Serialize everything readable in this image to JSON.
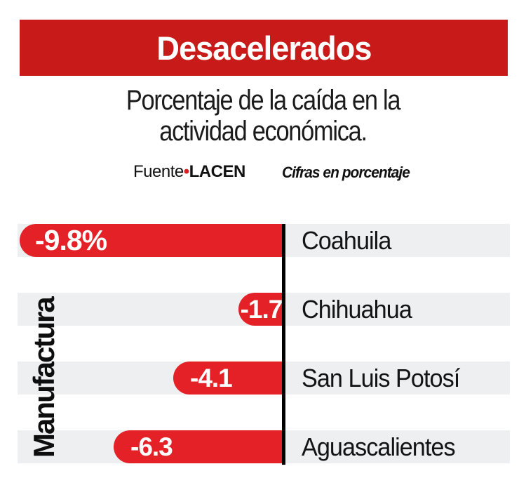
{
  "header": {
    "title": "Desacelerados",
    "bg_color": "#c81a18",
    "text_color": "#ffffff"
  },
  "subtitle": {
    "line1": "Porcentaje de la caída en la",
    "line2": "actividad económica."
  },
  "source": {
    "label": "Fuente",
    "bullet": "•",
    "bullet_color": "#d91f26",
    "name": "LACEN",
    "note": "Cifras en porcentaje"
  },
  "chart_data": {
    "type": "bar",
    "orientation": "horizontal",
    "title": "Desacelerados",
    "subtitle": "Porcentaje de la caída en la actividad económica.",
    "group_label": "Manufactura",
    "categories": [
      "Coahuila",
      "Chihuahua",
      "San Luis Potosí",
      "Aguascalientes"
    ],
    "values": [
      -9.8,
      -1.7,
      -4.1,
      -6.3
    ],
    "value_labels": [
      "-9.8%",
      "-1.7",
      "-4.1",
      "-6.3"
    ],
    "unit": "percent",
    "xlim": [
      -10,
      0
    ],
    "grid": false,
    "legend": false,
    "bar_color": "#e32127",
    "band_color": "#edeff1",
    "axis_color": "#000000",
    "label_color": "#141414"
  }
}
